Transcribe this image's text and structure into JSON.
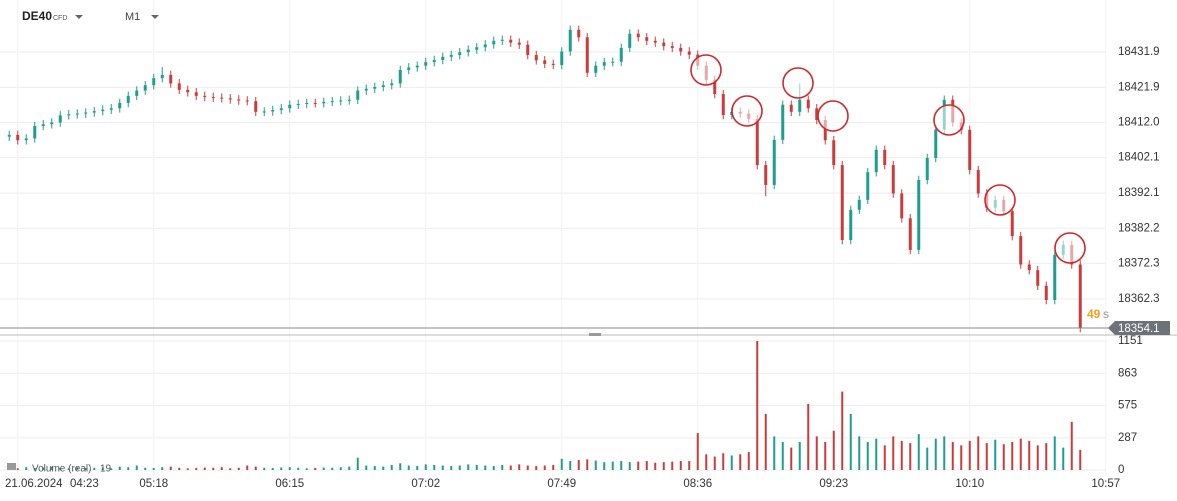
{
  "chart_data": {
    "type": "candlestick",
    "symbol": "DE40",
    "instrument": "CFD",
    "timeframe": "M1",
    "date": "21.06.2024",
    "countdown": "49",
    "countdown_unit": "s",
    "volume_label": "Volume (real)",
    "volume_current": "19",
    "up_color": "#1f9e8f",
    "down_color": "#cc3b3b",
    "grid": true,
    "xlim": [
      0,
      130
    ],
    "xticks": [
      {
        "value": 1.5,
        "label": "04:23"
      },
      {
        "value": 17.5,
        "label": "05:18"
      },
      {
        "value": 33.5,
        "label": "06:15"
      },
      {
        "value": 49.5,
        "label": "07:02"
      },
      {
        "value": 65.5,
        "label": "07:49"
      },
      {
        "value": 81.5,
        "label": "08:36"
      },
      {
        "value": 97.5,
        "label": "09:23"
      },
      {
        "value": 113.5,
        "label": "10:10"
      },
      {
        "value": 129.5,
        "label": "10:57"
      }
    ],
    "ylim": [
      18352.7,
      18446.5
    ],
    "yticks": [
      18431.9,
      18421.9,
      {
        "value": 18412.0,
        "label": "18412.0"
      },
      18402.1,
      18392.1,
      18382.2,
      18372.3,
      18362.3
    ],
    "y2lim": [
      0,
      1151
    ],
    "y2ticks": [
      1151,
      863,
      575,
      287,
      0
    ],
    "ohlc": [
      [
        18408.0,
        18409.7,
        18406.8,
        18408.5
      ],
      [
        18408.5,
        18409.7,
        18405.8,
        18407.0
      ],
      [
        18407.0,
        18408.7,
        18405.8,
        18407.5
      ],
      [
        18407.5,
        18412.2,
        18406.3,
        18411.0
      ],
      [
        18411.0,
        18412.7,
        18409.8,
        18411.5
      ],
      [
        18411.5,
        18413.2,
        18410.3,
        18412.0
      ],
      [
        18412.0,
        18415.2,
        18410.8,
        18414.0
      ],
      [
        18414.0,
        18415.5,
        18412.8,
        18414.3
      ],
      [
        18414.3,
        18415.7,
        18413.1,
        18414.5
      ],
      [
        18414.5,
        18416.0,
        18413.3,
        18414.8
      ],
      [
        18414.8,
        18416.4,
        18413.6,
        18415.2
      ],
      [
        18415.2,
        18416.8,
        18414.0,
        18415.6
      ],
      [
        18415.6,
        18417.2,
        18414.4,
        18416.0
      ],
      [
        18416.0,
        18418.7,
        18414.8,
        18417.5
      ],
      [
        18417.5,
        18420.7,
        18416.3,
        18419.5
      ],
      [
        18419.5,
        18422.2,
        18418.3,
        18421.0
      ],
      [
        18421.0,
        18423.7,
        18419.8,
        18422.5
      ],
      [
        18422.5,
        18425.7,
        18421.3,
        18424.5
      ],
      [
        18424.5,
        18427.6,
        18423.3,
        18425.4
      ],
      [
        18425.4,
        18426.6,
        18421.8,
        18423.0
      ],
      [
        18423.0,
        18424.2,
        18420.0,
        18421.2
      ],
      [
        18421.2,
        18422.4,
        18419.3,
        18420.5
      ],
      [
        18420.5,
        18421.7,
        18418.3,
        18419.5
      ],
      [
        18419.5,
        18420.7,
        18418.0,
        18419.2
      ],
      [
        18419.2,
        18420.4,
        18417.8,
        18419.0
      ],
      [
        18419.0,
        18420.2,
        18417.6,
        18418.8
      ],
      [
        18418.8,
        18420.0,
        18417.3,
        18418.5
      ],
      [
        18418.5,
        18419.7,
        18417.0,
        18418.2
      ],
      [
        18418.2,
        18419.4,
        18416.8,
        18418.0
      ],
      [
        18418.0,
        18419.2,
        18413.8,
        18415.0
      ],
      [
        18415.0,
        18416.3,
        18413.8,
        18415.1
      ],
      [
        18415.1,
        18416.7,
        18413.9,
        18415.5
      ],
      [
        18415.5,
        18417.2,
        18414.3,
        18416.0
      ],
      [
        18416.0,
        18418.2,
        18414.8,
        18417.0
      ],
      [
        18417.0,
        18418.4,
        18415.8,
        18417.2
      ],
      [
        18417.2,
        18418.7,
        18416.0,
        18417.5
      ],
      [
        18417.5,
        18418.7,
        18416.2,
        18417.4
      ],
      [
        18417.4,
        18419.0,
        18416.2,
        18417.8
      ],
      [
        18417.8,
        18419.2,
        18416.6,
        18418.0
      ],
      [
        18418.0,
        18419.4,
        18416.8,
        18418.2
      ],
      [
        18418.2,
        18419.6,
        18417.0,
        18418.4
      ],
      [
        18418.4,
        18422.2,
        18417.2,
        18421.0
      ],
      [
        18421.0,
        18422.7,
        18419.8,
        18421.5
      ],
      [
        18421.5,
        18423.2,
        18420.3,
        18422.0
      ],
      [
        18422.0,
        18423.7,
        18420.8,
        18422.5
      ],
      [
        18422.5,
        18424.2,
        18421.3,
        18423.0
      ],
      [
        18423.0,
        18428.0,
        18421.8,
        18426.8
      ],
      [
        18426.8,
        18428.7,
        18425.6,
        18427.5
      ],
      [
        18427.5,
        18429.2,
        18426.3,
        18428.0
      ],
      [
        18428.0,
        18430.2,
        18426.8,
        18429.0
      ],
      [
        18429.0,
        18430.8,
        18427.8,
        18429.6
      ],
      [
        18429.6,
        18431.7,
        18428.4,
        18430.5
      ],
      [
        18430.5,
        18432.2,
        18429.3,
        18431.0
      ],
      [
        18431.0,
        18433.0,
        18429.8,
        18431.8
      ],
      [
        18431.8,
        18433.7,
        18430.6,
        18432.5
      ],
      [
        18432.5,
        18434.4,
        18431.3,
        18433.2
      ],
      [
        18433.2,
        18435.2,
        18432.0,
        18434.0
      ],
      [
        18434.0,
        18436.2,
        18432.8,
        18435.0
      ],
      [
        18435.0,
        18436.5,
        18433.8,
        18435.3
      ],
      [
        18435.3,
        18436.5,
        18433.3,
        18434.5
      ],
      [
        18434.5,
        18435.7,
        18432.7,
        18433.9
      ],
      [
        18433.9,
        18435.1,
        18429.8,
        18431.0
      ],
      [
        18431.0,
        18432.2,
        18428.3,
        18429.5
      ],
      [
        18429.5,
        18430.7,
        18427.3,
        18428.5
      ],
      [
        18428.5,
        18429.7,
        18427.0,
        18428.2
      ],
      [
        18428.2,
        18433.2,
        18427.0,
        18432.0
      ],
      [
        18432.0,
        18439.3,
        18430.8,
        18438.1
      ],
      [
        18438.1,
        18439.3,
        18434.8,
        18436.0
      ],
      [
        18436.0,
        18437.2,
        18424.8,
        18426.0
      ],
      [
        18426.0,
        18429.2,
        18424.8,
        18428.0
      ],
      [
        18428.0,
        18430.2,
        18426.8,
        18429.0
      ],
      [
        18429.0,
        18430.3,
        18427.8,
        18429.1
      ],
      [
        18429.1,
        18434.2,
        18427.9,
        18433.0
      ],
      [
        18433.0,
        18438.2,
        18431.8,
        18437.0
      ],
      [
        18437.0,
        18438.2,
        18434.8,
        18436.0
      ],
      [
        18436.0,
        18437.2,
        18433.8,
        18435.0
      ],
      [
        18435.0,
        18436.2,
        18433.3,
        18434.5
      ],
      [
        18434.5,
        18435.7,
        18432.3,
        18433.5
      ],
      [
        18433.5,
        18434.7,
        18431.8,
        18433.0
      ],
      [
        18433.0,
        18434.2,
        18430.8,
        18432.0
      ],
      [
        18432.0,
        18433.2,
        18429.9,
        18431.1
      ],
      [
        18431.1,
        18432.3,
        18426.8,
        18428.0
      ],
      [
        18428.0,
        18429.2,
        18422.8,
        18424.0
      ],
      [
        18424.0,
        18425.2,
        18418.8,
        18420.0
      ],
      [
        18420.0,
        18421.2,
        18412.9,
        18414.1
      ],
      [
        18414.1,
        18416.2,
        18412.9,
        18415.0
      ],
      [
        18415.0,
        18416.2,
        18413.3,
        18414.5
      ],
      [
        18414.5,
        18415.7,
        18411.8,
        18413.0
      ],
      [
        18413.0,
        18414.2,
        18398.8,
        18400.0
      ],
      [
        18400.0,
        18401.2,
        18391.2,
        18394.4
      ],
      [
        18394.4,
        18408.3,
        18393.2,
        18407.1
      ],
      [
        18407.1,
        18418.2,
        18405.9,
        18417.0
      ],
      [
        18417.0,
        18418.2,
        18413.8,
        18415.0
      ],
      [
        18415.0,
        18423.0,
        18413.8,
        18418.4
      ],
      [
        18418.4,
        18419.6,
        18414.8,
        18416.0
      ],
      [
        18416.0,
        18417.2,
        18411.5,
        18412.7
      ],
      [
        18412.7,
        18413.9,
        18405.8,
        18407.0
      ],
      [
        18407.0,
        18408.2,
        18398.8,
        18400.0
      ],
      [
        18400.0,
        18401.2,
        18377.7,
        18378.9
      ],
      [
        18378.9,
        18388.6,
        18377.7,
        18387.4
      ],
      [
        18387.4,
        18391.4,
        18386.2,
        18390.2
      ],
      [
        18390.2,
        18399.2,
        18389.0,
        18398.0
      ],
      [
        18398.0,
        18405.5,
        18396.8,
        18404.3
      ],
      [
        18404.3,
        18405.5,
        18398.8,
        18400.0
      ],
      [
        18400.0,
        18401.2,
        18390.8,
        18392.0
      ],
      [
        18392.0,
        18393.2,
        18383.8,
        18385.0
      ],
      [
        18385.0,
        18386.2,
        18374.9,
        18376.1
      ],
      [
        18376.1,
        18397.0,
        18374.9,
        18395.8
      ],
      [
        18395.8,
        18403.2,
        18394.6,
        18402.0
      ],
      [
        18402.0,
        18411.2,
        18400.8,
        18410.0
      ],
      [
        18410.0,
        18419.6,
        18408.8,
        18418.4
      ],
      [
        18418.4,
        18419.6,
        18410.8,
        18412.0
      ],
      [
        18412.0,
        18413.2,
        18408.7,
        18409.9
      ],
      [
        18409.9,
        18411.1,
        18397.4,
        18398.6
      ],
      [
        18398.6,
        18399.8,
        18390.8,
        18392.0
      ],
      [
        18392.0,
        18393.2,
        18386.8,
        18388.0
      ],
      [
        18388.0,
        18391.4,
        18386.8,
        18390.2
      ],
      [
        18390.2,
        18391.4,
        18385.8,
        18387.0
      ],
      [
        18387.0,
        18388.2,
        18378.8,
        18380.0
      ],
      [
        18380.0,
        18381.2,
        18370.8,
        18372.0
      ],
      [
        18372.0,
        18373.2,
        18369.2,
        18370.4
      ],
      [
        18370.4,
        18371.6,
        18364.8,
        18366.0
      ],
      [
        18366.0,
        18367.2,
        18360.8,
        18362.0
      ],
      [
        18362.0,
        18375.9,
        18360.8,
        18374.7
      ],
      [
        18374.7,
        18378.7,
        18373.5,
        18377.5
      ],
      [
        18377.5,
        18378.7,
        18370.8,
        18372.0
      ],
      [
        18372.0,
        18373.2,
        18352.9,
        18354.1
      ]
    ],
    "volume": [
      20,
      15,
      25,
      18,
      22,
      30,
      20,
      15,
      25,
      18,
      20,
      22,
      15,
      30,
      25,
      40,
      20,
      18,
      25,
      30,
      20,
      15,
      18,
      22,
      20,
      25,
      15,
      20,
      40,
      30,
      20,
      18,
      22,
      25,
      20,
      15,
      18,
      22,
      20,
      25,
      30,
      110,
      40,
      35,
      30,
      45,
      60,
      40,
      35,
      50,
      45,
      40,
      35,
      40,
      50,
      45,
      40,
      35,
      45,
      40,
      50,
      40,
      35,
      40,
      45,
      100,
      80,
      90,
      95,
      85,
      70,
      75,
      80,
      70,
      75,
      80,
      65,
      70,
      75,
      80,
      80,
      330,
      140,
      120,
      150,
      130,
      140,
      160,
      1151,
      500,
      300,
      250,
      200,
      250,
      590,
      300,
      250,
      350,
      700,
      500,
      300,
      250,
      280,
      220,
      300,
      260,
      240,
      320,
      200,
      280,
      300,
      250,
      220,
      260,
      300,
      240,
      270,
      230,
      250,
      280,
      260,
      220,
      240,
      300,
      200,
      430,
      180
    ]
  }
}
